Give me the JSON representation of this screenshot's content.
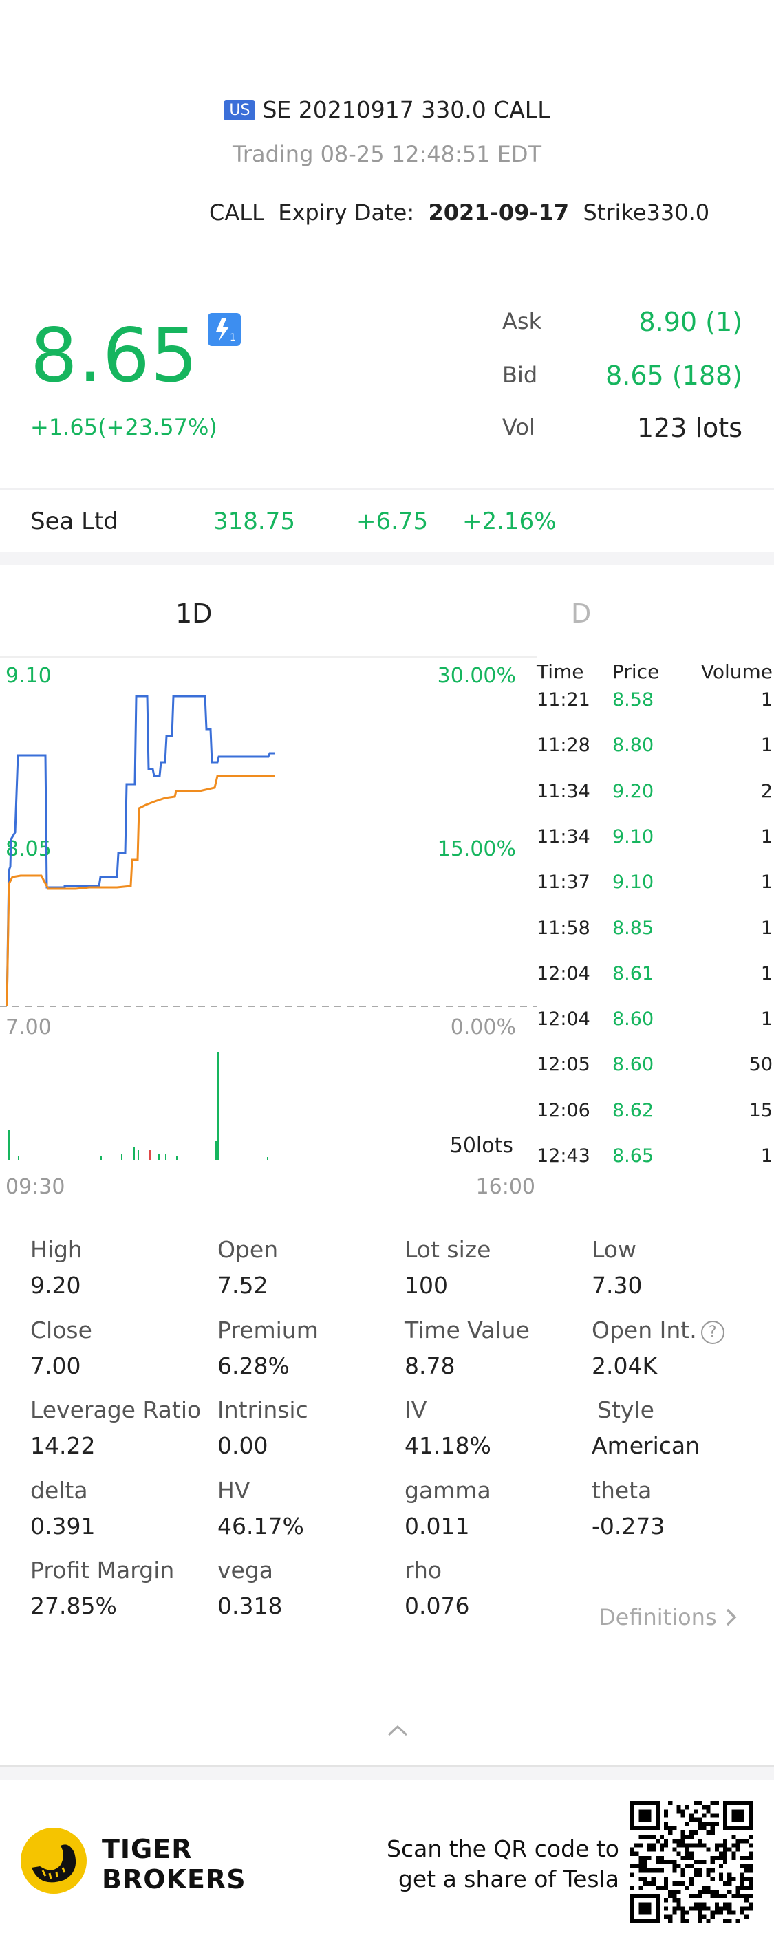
{
  "header": {
    "market_badge": "US",
    "title": "SE 20210917 330.0 CALL",
    "status": "Trading  08-25 12:48:51 EDT",
    "type": "CALL",
    "expiry_label": "Expiry Date:",
    "expiry_value": "2021-09-17",
    "strike_label": "Strike",
    "strike_value": "330.0"
  },
  "quote": {
    "price": "8.65",
    "flash_icon": "lightning-1-icon",
    "change": "+1.65(+23.57%)",
    "ask_label": "Ask",
    "ask_value": "8.90 (1)",
    "bid_label": "Bid",
    "bid_value": "8.65 (188)",
    "vol_label": "Vol",
    "vol_value": "123 lots"
  },
  "underlying": {
    "name": "Sea Ltd",
    "price": "318.75",
    "change": "+6.75",
    "pct": "+2.16%"
  },
  "tabs": [
    "1D",
    "D"
  ],
  "chart": {
    "y_left": [
      "9.10",
      "8.05",
      "7.00"
    ],
    "y_right": [
      "30.00%",
      "15.00%",
      "0.00%"
    ],
    "x_start": "09:30",
    "x_end": "16:00",
    "volume_label": "50lots",
    "colors": {
      "price": "#3a6fd8",
      "avg": "#f08c1e",
      "up": "#16b55e",
      "down": "#e04848"
    }
  },
  "chart_data": {
    "type": "line",
    "x": [
      "09:30",
      "16:00"
    ],
    "ylim": [
      7.0,
      9.1
    ],
    "series": [],
    "volume_max_lots": 50
  },
  "trades": {
    "headers": {
      "time": "Time",
      "price": "Price",
      "volume": "Volume"
    },
    "rows": [
      {
        "time": "11:21",
        "price": "8.58",
        "volume": "1"
      },
      {
        "time": "11:28",
        "price": "8.80",
        "volume": "1"
      },
      {
        "time": "11:34",
        "price": "9.20",
        "volume": "2"
      },
      {
        "time": "11:34",
        "price": "9.10",
        "volume": "1"
      },
      {
        "time": "11:37",
        "price": "9.10",
        "volume": "1"
      },
      {
        "time": "11:58",
        "price": "8.85",
        "volume": "1"
      },
      {
        "time": "12:04",
        "price": "8.61",
        "volume": "1"
      },
      {
        "time": "12:04",
        "price": "8.60",
        "volume": "1"
      },
      {
        "time": "12:05",
        "price": "8.60",
        "volume": "50"
      },
      {
        "time": "12:06",
        "price": "8.62",
        "volume": "15"
      },
      {
        "time": "12:43",
        "price": "8.65",
        "volume": "1"
      }
    ]
  },
  "stats": [
    [
      {
        "label": "High",
        "value": "9.20"
      },
      {
        "label": "Open",
        "value": "7.52"
      },
      {
        "label": "Lot size",
        "value": "100"
      },
      {
        "label": "Low",
        "value": "7.30"
      }
    ],
    [
      {
        "label": "Close",
        "value": "7.00"
      },
      {
        "label": "Premium",
        "value": "6.28%"
      },
      {
        "label": "Time Value",
        "value": "8.78"
      },
      {
        "label": "Open Int.",
        "value": "2.04K"
      }
    ],
    [
      {
        "label": "Leverage Ratio",
        "value": "14.22"
      },
      {
        "label": "Intrinsic",
        "value": "0.00"
      },
      {
        "label": "IV",
        "value": "41.18%"
      },
      {
        "label": "Style",
        "value": "American"
      }
    ],
    [
      {
        "label": "delta",
        "value": "0.391"
      },
      {
        "label": "HV",
        "value": "46.17%"
      },
      {
        "label": "gamma",
        "value": "0.011"
      },
      {
        "label": "theta",
        "value": "-0.273"
      }
    ],
    [
      {
        "label": "Profit Margin",
        "value": "27.85%"
      },
      {
        "label": "vega",
        "value": "0.318"
      },
      {
        "label": "rho",
        "value": "0.076"
      }
    ]
  ],
  "definitions_label": "Definitions",
  "footer": {
    "brand_line1": "TIGER",
    "brand_line2": "BROKERS",
    "scan_line1": "Scan the QR code to",
    "scan_line2": "get a share of Tesla"
  }
}
